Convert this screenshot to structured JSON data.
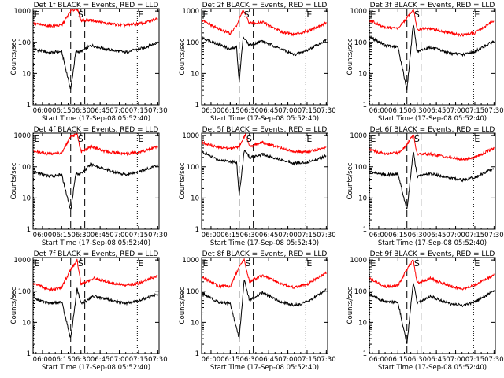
{
  "colors": {
    "events": "#000000",
    "lld": "#ff0000",
    "background": "#ffffff"
  },
  "chart_data": [
    {
      "type": "line",
      "title": "Det 1f BLACK = Events, RED = LLD",
      "xlabel": "Start Time (17-Sep-08 05:52:40)",
      "ylabel": "Counts/sec",
      "x_ticks": [
        "06:00",
        "06:15",
        "06:30",
        "06:45",
        "07:00",
        "07:15",
        "07:30"
      ],
      "y_ticks": [
        "1",
        "10",
        "100",
        "1000"
      ],
      "xlim": [
        "05:52:40",
        "07:31:00"
      ],
      "ylim": [
        1,
        1200
      ],
      "y_scale": "log",
      "markers": [
        {
          "label": "E",
          "time": "05:53"
        },
        {
          "label": "S",
          "time": "06:27"
        },
        {
          "label": "E",
          "time": "07:14"
        }
      ],
      "dashed_lines": [
        "06:22",
        "06:33"
      ],
      "dotted_lines": [
        "05:53",
        "07:14"
      ],
      "grid": false,
      "series": [
        {
          "key": "events",
          "x": [
            "05:53",
            "06:05",
            "06:15",
            "06:22",
            "06:26",
            "06:30",
            "06:38",
            "06:50",
            "07:05",
            "07:20",
            "07:30"
          ],
          "y": [
            60,
            47,
            50,
            3,
            50,
            50,
            80,
            60,
            48,
            68,
            100
          ]
        },
        {
          "key": "lld",
          "x": [
            "05:53",
            "06:05",
            "06:15",
            "06:22",
            "06:27",
            "06:30",
            "06:38",
            "06:50",
            "07:05",
            "07:20",
            "07:30"
          ],
          "y": [
            400,
            330,
            350,
            1000,
            1200,
            500,
            520,
            400,
            350,
            420,
            600
          ]
        }
      ]
    },
    {
      "type": "line",
      "title": "Det 2f BLACK = Events, RED = LLD",
      "xlabel": "Start Time (17-Sep-08 05:52:40)",
      "ylabel": "Counts/sec",
      "x_ticks": [
        "06:00",
        "06:15",
        "06:30",
        "06:45",
        "07:00",
        "07:15",
        "07:30"
      ],
      "y_ticks": [
        "1",
        "10",
        "100",
        "1000"
      ],
      "xlim": [
        "05:52:40",
        "07:31:00"
      ],
      "ylim": [
        1,
        1200
      ],
      "y_scale": "log",
      "markers": [
        {
          "label": "E",
          "time": "05:53"
        },
        {
          "label": "S",
          "time": "06:25"
        },
        {
          "label": "E",
          "time": "07:14"
        }
      ],
      "dashed_lines": [
        "06:22",
        "06:33"
      ],
      "dotted_lines": [
        "05:53",
        "07:14"
      ],
      "grid": false,
      "series": [
        {
          "key": "events",
          "x": [
            "05:53",
            "06:05",
            "06:15",
            "06:20",
            "06:22",
            "06:25",
            "06:30",
            "06:40",
            "06:55",
            "07:05",
            "07:15",
            "07:30"
          ],
          "y": [
            140,
            90,
            60,
            70,
            5,
            150,
            80,
            110,
            60,
            40,
            55,
            120
          ]
        },
        {
          "key": "lld",
          "x": [
            "05:53",
            "06:05",
            "06:15",
            "06:20",
            "06:25",
            "06:30",
            "06:40",
            "06:55",
            "07:05",
            "07:15",
            "07:30"
          ],
          "y": [
            500,
            280,
            190,
            350,
            1100,
            400,
            450,
            220,
            180,
            230,
            420
          ]
        }
      ]
    },
    {
      "type": "line",
      "title": "Det 3f BLACK = Events, RED = LLD",
      "xlabel": "Start Time (17-Sep-08 05:52:40)",
      "ylabel": "Counts/sec",
      "x_ticks": [
        "06:00",
        "06:15",
        "06:30",
        "06:45",
        "07:00",
        "07:15",
        "07:30"
      ],
      "y_ticks": [
        "1",
        "10",
        "100",
        "1000"
      ],
      "xlim": [
        "05:52:40",
        "07:31:00"
      ],
      "ylim": [
        1,
        1200
      ],
      "y_scale": "log",
      "markers": [
        {
          "label": "E",
          "time": "05:53"
        },
        {
          "label": "S",
          "time": "06:27"
        },
        {
          "label": "E",
          "time": "07:14"
        }
      ],
      "dashed_lines": [
        "06:22",
        "06:33"
      ],
      "dotted_lines": [
        "05:53",
        "07:14"
      ],
      "grid": false,
      "series": [
        {
          "key": "events",
          "x": [
            "05:53",
            "06:05",
            "06:15",
            "06:22",
            "06:27",
            "06:30",
            "06:40",
            "06:55",
            "07:05",
            "07:15",
            "07:30"
          ],
          "y": [
            150,
            80,
            70,
            3,
            400,
            50,
            70,
            45,
            40,
            50,
            110
          ]
        },
        {
          "key": "lld",
          "x": [
            "05:53",
            "06:05",
            "06:15",
            "06:22",
            "06:27",
            "06:30",
            "06:40",
            "06:55",
            "07:05",
            "07:15",
            "07:30"
          ],
          "y": [
            500,
            300,
            280,
            600,
            1200,
            260,
            280,
            200,
            170,
            200,
            500
          ]
        }
      ]
    },
    {
      "type": "line",
      "title": "Det 4f BLACK = Events, RED = LLD",
      "xlabel": "Start Time (17-Sep-08 05:52:40)",
      "ylabel": "Counts/sec",
      "x_ticks": [
        "06:00",
        "06:15",
        "06:30",
        "06:45",
        "07:00",
        "07:15",
        "07:30"
      ],
      "y_ticks": [
        "1",
        "10",
        "100",
        "1000"
      ],
      "xlim": [
        "05:52:40",
        "07:31:00"
      ],
      "ylim": [
        1,
        1200
      ],
      "y_scale": "log",
      "markers": [
        {
          "label": "E",
          "time": "05:53"
        },
        {
          "label": "S",
          "time": "06:27"
        },
        {
          "label": "E",
          "time": "07:14"
        }
      ],
      "dashed_lines": [
        "06:22",
        "06:33"
      ],
      "dotted_lines": [
        "05:53",
        "07:14"
      ],
      "grid": false,
      "series": [
        {
          "key": "events",
          "x": [
            "05:53",
            "06:05",
            "06:15",
            "06:22",
            "06:26",
            "06:30",
            "06:38",
            "06:50",
            "07:05",
            "07:20",
            "07:30"
          ],
          "y": [
            70,
            50,
            55,
            4,
            60,
            60,
            120,
            80,
            55,
            80,
            110
          ]
        },
        {
          "key": "lld",
          "x": [
            "05:53",
            "06:05",
            "06:15",
            "06:22",
            "06:27",
            "06:30",
            "06:38",
            "06:50",
            "07:05",
            "07:20",
            "07:30"
          ],
          "y": [
            320,
            260,
            280,
            900,
            1100,
            300,
            450,
            300,
            260,
            320,
            450
          ]
        }
      ]
    },
    {
      "type": "line",
      "title": "Det 5f BLACK = Events, RED = LLD",
      "xlabel": "Start Time (17-Sep-08 05:52:40)",
      "ylabel": "Counts/sec",
      "x_ticks": [
        "06:00",
        "06:15",
        "06:30",
        "06:45",
        "07:00",
        "07:15",
        "07:30"
      ],
      "y_ticks": [
        "1",
        "10",
        "100",
        "1000"
      ],
      "xlim": [
        "05:52:40",
        "07:31:00"
      ],
      "ylim": [
        1,
        1200
      ],
      "y_scale": "log",
      "markers": [
        {
          "label": "S",
          "time": "06:27"
        },
        {
          "label": "E",
          "time": "07:14"
        }
      ],
      "dashed_lines": [
        "06:22",
        "06:33"
      ],
      "dotted_lines": [
        "05:53",
        "07:14"
      ],
      "grid": false,
      "series": [
        {
          "key": "events",
          "x": [
            "05:53",
            "06:05",
            "06:15",
            "06:20",
            "06:22",
            "06:26",
            "06:30",
            "06:40",
            "06:55",
            "07:05",
            "07:15",
            "07:30"
          ],
          "y": [
            300,
            170,
            150,
            140,
            12,
            350,
            200,
            250,
            170,
            130,
            140,
            220
          ]
        },
        {
          "key": "lld",
          "x": [
            "05:53",
            "06:05",
            "06:15",
            "06:22",
            "06:27",
            "06:30",
            "06:40",
            "06:55",
            "07:05",
            "07:15",
            "07:30"
          ],
          "y": [
            600,
            420,
            380,
            450,
            1100,
            450,
            600,
            400,
            300,
            300,
            420
          ]
        }
      ]
    },
    {
      "type": "line",
      "title": "Det 6f BLACK = Events, RED = LLD",
      "xlabel": "Start Time (17-Sep-08 05:52:40)",
      "ylabel": "Counts/sec",
      "x_ticks": [
        "06:00",
        "06:15",
        "06:30",
        "06:45",
        "07:00",
        "07:15",
        "07:30"
      ],
      "y_ticks": [
        "1",
        "10",
        "100",
        "1000"
      ],
      "xlim": [
        "05:52:40",
        "07:31:00"
      ],
      "ylim": [
        1,
        1200
      ],
      "y_scale": "log",
      "markers": [
        {
          "label": "E",
          "time": "05:53"
        },
        {
          "label": "S",
          "time": "06:27"
        },
        {
          "label": "E",
          "time": "07:14"
        }
      ],
      "dashed_lines": [
        "06:22",
        "06:33"
      ],
      "dotted_lines": [
        "05:53",
        "07:14"
      ],
      "grid": false,
      "series": [
        {
          "key": "events",
          "x": [
            "05:53",
            "06:05",
            "06:15",
            "06:22",
            "06:27",
            "06:30",
            "06:40",
            "06:55",
            "07:05",
            "07:15",
            "07:30"
          ],
          "y": [
            70,
            55,
            60,
            4,
            300,
            50,
            60,
            45,
            38,
            45,
            90
          ]
        },
        {
          "key": "lld",
          "x": [
            "05:53",
            "06:05",
            "06:15",
            "06:22",
            "06:27",
            "06:30",
            "06:40",
            "06:55",
            "07:05",
            "07:15",
            "07:30"
          ],
          "y": [
            350,
            260,
            280,
            500,
            1100,
            250,
            260,
            200,
            170,
            200,
            400
          ]
        }
      ]
    },
    {
      "type": "line",
      "title": "Det 7f BLACK = Events, RED = LLD",
      "xlabel": "Start Time (17-Sep-08 05:52:40)",
      "ylabel": "Counts/sec",
      "x_ticks": [
        "06:00",
        "06:15",
        "06:30",
        "06:45",
        "07:00",
        "07:15",
        "07:30"
      ],
      "y_ticks": [
        "1",
        "10",
        "100",
        "1000"
      ],
      "xlim": [
        "05:52:40",
        "07:31:00"
      ],
      "ylim": [
        1,
        1200
      ],
      "y_scale": "log",
      "markers": [
        {
          "label": "E",
          "time": "05:53"
        },
        {
          "label": "S",
          "time": "06:27"
        },
        {
          "label": "E",
          "time": "07:14"
        }
      ],
      "dashed_lines": [
        "06:22",
        "06:33"
      ],
      "dotted_lines": [
        "05:53",
        "07:14"
      ],
      "grid": false,
      "series": [
        {
          "key": "events",
          "x": [
            "05:53",
            "06:05",
            "06:15",
            "06:22",
            "06:27",
            "06:30",
            "06:40",
            "06:55",
            "07:05",
            "07:15",
            "07:30"
          ],
          "y": [
            60,
            40,
            45,
            3,
            120,
            40,
            70,
            50,
            40,
            50,
            80
          ]
        },
        {
          "key": "lld",
          "x": [
            "05:53",
            "06:05",
            "06:15",
            "06:22",
            "06:27",
            "06:30",
            "06:40",
            "06:55",
            "07:05",
            "07:15",
            "07:30"
          ],
          "y": [
            180,
            110,
            130,
            500,
            1000,
            170,
            260,
            180,
            150,
            180,
            320
          ]
        }
      ]
    },
    {
      "type": "line",
      "title": "Det 8f BLACK = Events, RED = LLD",
      "xlabel": "Start Time (17-Sep-08 05:52:40)",
      "ylabel": "Counts/sec",
      "x_ticks": [
        "06:00",
        "06:15",
        "06:30",
        "06:45",
        "07:00",
        "07:15",
        "07:30"
      ],
      "y_ticks": [
        "1",
        "10",
        "100",
        "1000"
      ],
      "xlim": [
        "05:52:40",
        "07:31:00"
      ],
      "ylim": [
        1,
        1200
      ],
      "y_scale": "log",
      "markers": [
        {
          "label": "E",
          "time": "05:53"
        },
        {
          "label": "S",
          "time": "06:26"
        },
        {
          "label": "E",
          "time": "07:14"
        }
      ],
      "dashed_lines": [
        "06:22",
        "06:33"
      ],
      "dotted_lines": [
        "05:53",
        "07:14"
      ],
      "grid": false,
      "series": [
        {
          "key": "events",
          "x": [
            "05:53",
            "06:05",
            "06:15",
            "06:22",
            "06:26",
            "06:30",
            "06:40",
            "06:55",
            "07:05",
            "07:15",
            "07:30"
          ],
          "y": [
            90,
            45,
            40,
            3,
            250,
            50,
            90,
            45,
            35,
            45,
            110
          ]
        },
        {
          "key": "lld",
          "x": [
            "05:53",
            "06:05",
            "06:15",
            "06:22",
            "06:26",
            "06:30",
            "06:40",
            "06:55",
            "07:05",
            "07:15",
            "07:30"
          ],
          "y": [
            300,
            150,
            140,
            600,
            1000,
            200,
            320,
            170,
            130,
            170,
            380
          ]
        }
      ]
    },
    {
      "type": "line",
      "title": "Det 9f BLACK = Events, RED = LLD",
      "xlabel": "Start Time (17-Sep-08 05:52:40)",
      "ylabel": "Counts/sec",
      "x_ticks": [
        "06:00",
        "06:15",
        "06:30",
        "06:45",
        "07:00",
        "07:15",
        "07:30"
      ],
      "y_ticks": [
        "1",
        "10",
        "100",
        "1000"
      ],
      "xlim": [
        "05:52:40",
        "07:31:00"
      ],
      "ylim": [
        1,
        1200
      ],
      "y_scale": "log",
      "markers": [
        {
          "label": "E",
          "time": "05:53"
        },
        {
          "label": "S",
          "time": "06:27"
        },
        {
          "label": "E",
          "time": "07:14"
        }
      ],
      "dashed_lines": [
        "06:22",
        "06:33"
      ],
      "dotted_lines": [
        "05:53",
        "07:14"
      ],
      "grid": false,
      "series": [
        {
          "key": "events",
          "x": [
            "05:53",
            "06:05",
            "06:15",
            "06:22",
            "06:27",
            "06:30",
            "06:40",
            "06:55",
            "07:05",
            "07:15",
            "07:30"
          ],
          "y": [
            80,
            45,
            45,
            2,
            200,
            40,
            70,
            40,
            35,
            45,
            100
          ]
        },
        {
          "key": "lld",
          "x": [
            "05:53",
            "06:05",
            "06:15",
            "06:22",
            "06:27",
            "06:30",
            "06:40",
            "06:55",
            "07:05",
            "07:15",
            "07:30"
          ],
          "y": [
            250,
            140,
            150,
            500,
            1000,
            180,
            260,
            150,
            120,
            160,
            330
          ]
        }
      ]
    }
  ]
}
